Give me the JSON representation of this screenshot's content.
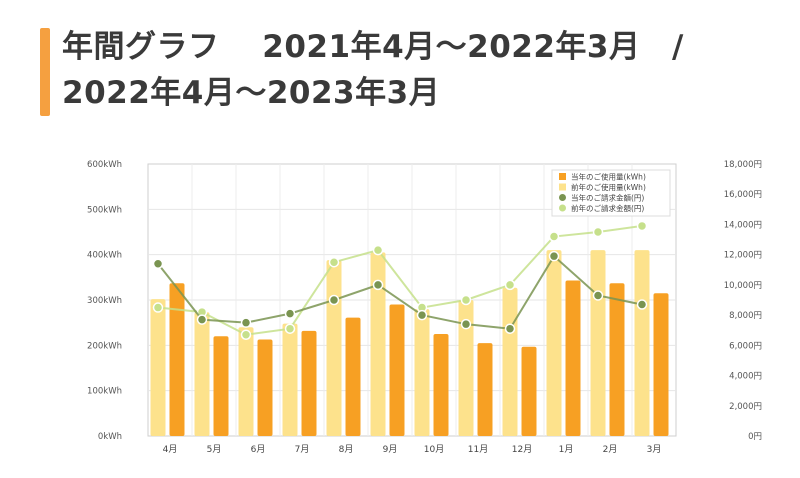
{
  "header": {
    "title": "年間グラフ　 2021年4月～2022年3月　/　2022年4月～2023年3月"
  },
  "chart_data": {
    "type": "bar",
    "categories": [
      "4月",
      "5月",
      "6月",
      "7月",
      "8月",
      "9月",
      "10月",
      "11月",
      "12月",
      "1月",
      "2月",
      "3月"
    ],
    "y_left": {
      "ticks": [
        "0kWh",
        "100kWh",
        "200kWh",
        "300kWh",
        "400kWh",
        "500kWh",
        "600kWh"
      ],
      "ylim": [
        0,
        600
      ]
    },
    "y_right": {
      "ticks": [
        "0円",
        "2,000円",
        "4,000円",
        "6,000円",
        "8,000円",
        "10,000円",
        "12,000円",
        "14,000円",
        "16,000円",
        "18,000円"
      ],
      "ylim": [
        0,
        18000
      ]
    },
    "series": [
      {
        "name": "当年のご使用量(kWh)",
        "type": "bar",
        "axis": "left",
        "color": "#f7a023",
        "values": [
          337,
          220,
          213,
          232,
          261,
          290,
          225,
          205,
          197,
          343,
          337,
          315
        ]
      },
      {
        "name": "前年のご使用量(kWh)",
        "type": "bar",
        "axis": "left",
        "color": "#fde28c",
        "values": [
          302,
          273,
          240,
          248,
          388,
          405,
          280,
          300,
          327,
          410,
          410,
          410
        ]
      },
      {
        "name": "当年のご請求金額(円)",
        "type": "line",
        "axis": "right",
        "color": "#7a9451",
        "values": [
          11400,
          7700,
          7500,
          8100,
          9000,
          10000,
          8000,
          7400,
          7100,
          11900,
          9300,
          8700
        ]
      },
      {
        "name": "前年のご請求金額(円)",
        "type": "line",
        "axis": "right",
        "color": "#c6e08b",
        "values": [
          8500,
          8200,
          6700,
          7100,
          11500,
          12300,
          8500,
          9000,
          10000,
          13200,
          13500,
          13900
        ]
      }
    ],
    "legend_position": "top-right",
    "grid": true
  }
}
